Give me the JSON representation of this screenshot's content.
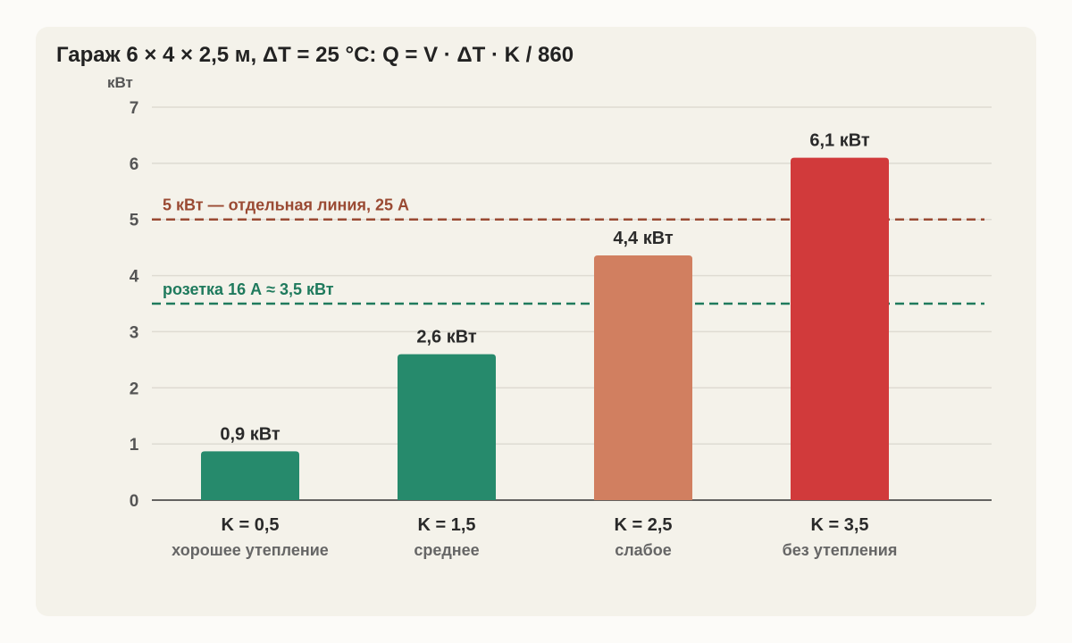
{
  "chart_data": {
    "type": "bar",
    "title": "Гараж 6 × 4 × 2,5 м, ΔT = 25 °C: Q = V · ΔT · K / 860",
    "ylabel": "кВт",
    "ylim": [
      0,
      7
    ],
    "yticks": [
      "0",
      "1",
      "2",
      "3",
      "4",
      "5",
      "6",
      "7"
    ],
    "grid": true,
    "categories": [
      "K = 0,5",
      "K = 1,5",
      "K = 2,5",
      "K = 3,5"
    ],
    "category_subtitles": [
      "хорошее утепление",
      "среднее",
      "слабое",
      "без утепления"
    ],
    "values": [
      0.87,
      2.6,
      4.36,
      6.1
    ],
    "data_labels": [
      "0,9 кВт",
      "2,6 кВт",
      "4,4 кВт",
      "6,1 кВт"
    ],
    "bar_colors": [
      "#268a6c",
      "#268a6c",
      "#d17f60",
      "#d13a3b"
    ],
    "reference_lines": [
      {
        "value": 5,
        "label": "5 кВт — отдельная линия, 25 А",
        "color": "#9a4a33"
      },
      {
        "value": 3.5,
        "label": "розетка 16 А ≈ 3,5 кВт",
        "color": "#1f7a5d"
      }
    ]
  }
}
